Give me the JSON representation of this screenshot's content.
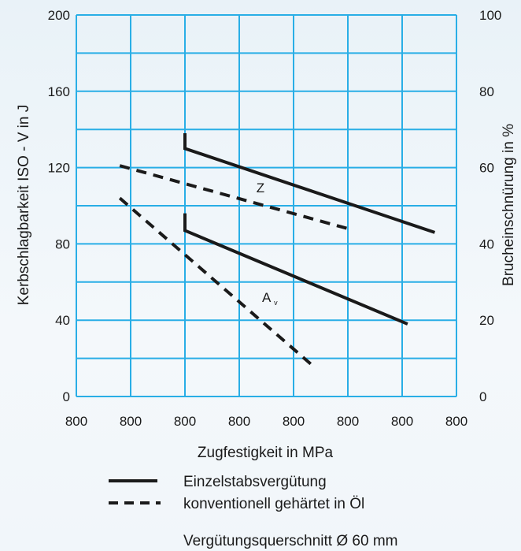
{
  "chart_data": {
    "type": "line",
    "xlabel": "Zugfestigkeit in MPa",
    "ylabel": "Kerbschlagbarkeit ISO - V in J",
    "y2label": "Brucheinschnürung in %",
    "x_tick_labels": [
      "800",
      "800",
      "800",
      "800",
      "800",
      "800",
      "800",
      "800"
    ],
    "xlim": [
      0,
      7
    ],
    "ylim": [
      0,
      200
    ],
    "y_ticks": [
      0,
      40,
      80,
      120,
      160,
      200
    ],
    "y2lim": [
      0,
      100
    ],
    "y2_ticks": [
      0,
      20,
      40,
      60,
      80,
      100
    ],
    "grid": true,
    "grid_color": "#29aee6",
    "series": [
      {
        "style": "solid",
        "label": "Z",
        "axis": "right",
        "x": [
          2.0,
          2.0,
          6.6
        ],
        "y": [
          69,
          65,
          43
        ]
      },
      {
        "style": "solid",
        "label": "Av",
        "axis": "left",
        "x": [
          2.0,
          2.0,
          6.1
        ],
        "y": [
          96,
          87,
          38
        ]
      },
      {
        "style": "dashed",
        "label": "Z",
        "axis": "right",
        "x": [
          0.8,
          5.0
        ],
        "y": [
          60.5,
          44
        ]
      },
      {
        "style": "dashed",
        "label": "Av",
        "axis": "left",
        "x": [
          0.8,
          4.4
        ],
        "y": [
          104,
          15
        ]
      }
    ],
    "annotations": [
      {
        "text": "Z",
        "x": 3.4,
        "y": 113
      },
      {
        "text": "A",
        "subscript": "v",
        "x": 3.5,
        "y": 50
      }
    ],
    "legend": [
      {
        "style": "solid",
        "label": "Einzelstabsvergütung"
      },
      {
        "style": "dashed",
        "label": "konventionell gehärtet in Öl"
      }
    ],
    "note": "Vergütungsquerschnitt Ø 60 mm"
  }
}
